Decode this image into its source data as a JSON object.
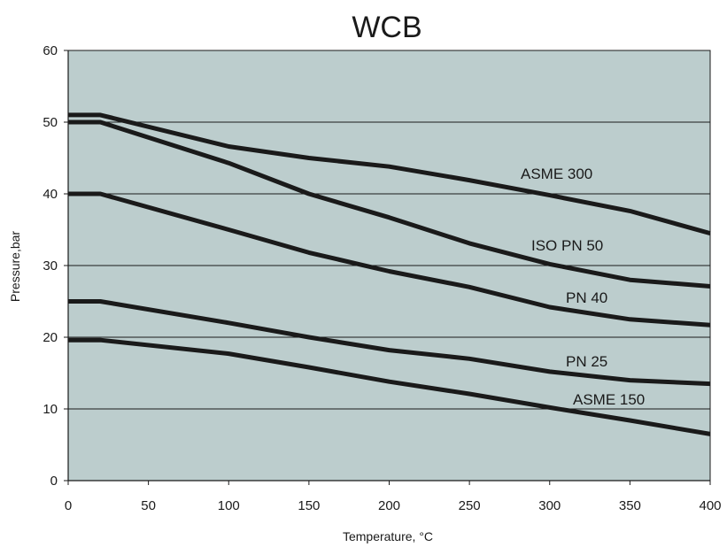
{
  "chart_data": {
    "type": "line",
    "title": "WCB",
    "xlabel": "Temperature, °C",
    "ylabel": "Pressure,bar",
    "xlim": [
      0,
      400
    ],
    "ylim": [
      0,
      60
    ],
    "xticks": [
      0,
      50,
      100,
      150,
      200,
      250,
      300,
      350,
      400
    ],
    "yticks": [
      0,
      10,
      20,
      30,
      40,
      50,
      60
    ],
    "grid": "horizontal",
    "plot_background": "#bccdcd",
    "line_color": "#1a1a1a",
    "series": [
      {
        "name": "ASME 300",
        "x": [
          0,
          20,
          100,
          150,
          200,
          250,
          300,
          350,
          400
        ],
        "y": [
          51,
          51,
          46.6,
          45,
          43.8,
          41.9,
          39.8,
          37.6,
          34.5
        ]
      },
      {
        "name": "ISO PN 50",
        "x": [
          0,
          20,
          100,
          150,
          200,
          250,
          300,
          350,
          400
        ],
        "y": [
          50,
          50,
          44.3,
          40,
          36.7,
          33.1,
          30.2,
          28,
          27.1
        ]
      },
      {
        "name": "PN 40",
        "x": [
          0,
          20,
          100,
          150,
          200,
          250,
          300,
          350,
          400
        ],
        "y": [
          40,
          40,
          35,
          31.8,
          29.2,
          27,
          24.2,
          22.5,
          21.7
        ]
      },
      {
        "name": "PN 25",
        "x": [
          0,
          20,
          100,
          150,
          200,
          250,
          300,
          350,
          400
        ],
        "y": [
          25,
          25,
          22,
          20,
          18.2,
          17,
          15.2,
          14,
          13.5
        ]
      },
      {
        "name": "ASME 150",
        "x": [
          0,
          20,
          100,
          150,
          200,
          250,
          300,
          350,
          400
        ],
        "y": [
          19.6,
          19.6,
          17.7,
          15.8,
          13.8,
          12.1,
          10.2,
          8.4,
          6.5
        ]
      }
    ]
  }
}
